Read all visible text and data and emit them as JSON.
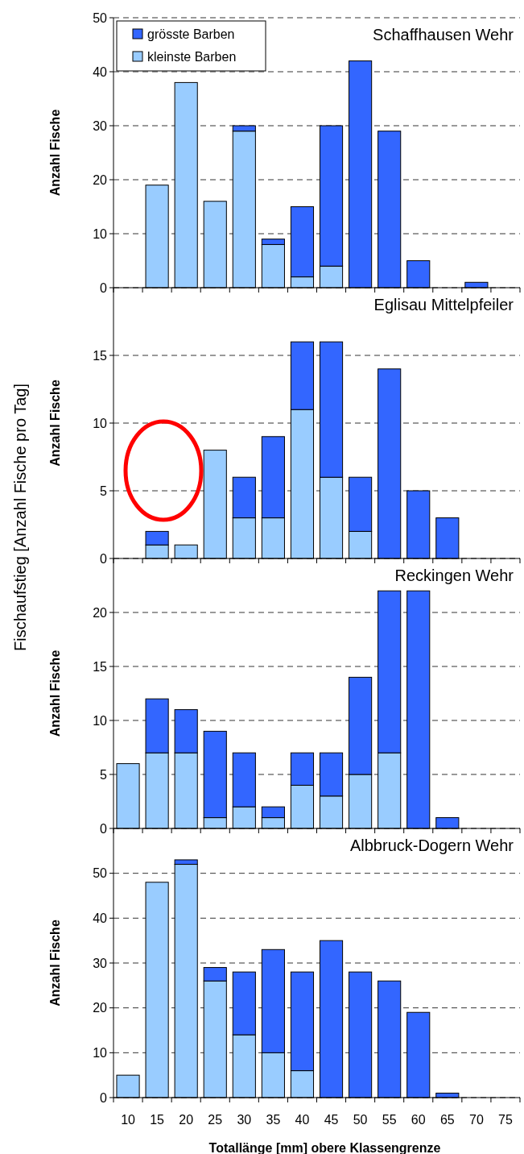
{
  "chart_data": [
    {
      "type": "bar",
      "title": "Schaffhausen Wehr",
      "ylabel": "Anzahl Fische",
      "annotations": [
        "Fischaufstieg [Anzahl Fische pro Tag]"
      ],
      "categories": [
        "10",
        "15",
        "20",
        "25",
        "30",
        "35",
        "40",
        "45",
        "50",
        "55",
        "60",
        "65",
        "70",
        "75"
      ],
      "stacked": true,
      "ylim": [
        0,
        50
      ],
      "yticks": [
        0,
        10,
        20,
        30,
        40,
        50
      ],
      "grid": "y",
      "legend": "top left",
      "tick_labels": "y",
      "series": [
        {
          "name": "kleinste Barben",
          "color": "#99ccff",
          "values": [
            null,
            19,
            38,
            16,
            29,
            8,
            2,
            4,
            null,
            null,
            null,
            null,
            null,
            null
          ]
        },
        {
          "name": "grösste Barben",
          "color": "#3366ff",
          "values": [
            null,
            null,
            null,
            null,
            1,
            1,
            13,
            26,
            42,
            29,
            5,
            null,
            1,
            null
          ]
        }
      ]
    },
    {
      "type": "bar",
      "title": "Eglisau Mittelpfeiler",
      "ylabel": "Anzahl Fische",
      "categories": [
        "10",
        "15",
        "20",
        "25",
        "30",
        "35",
        "40",
        "45",
        "50",
        "55",
        "60",
        "65",
        "70",
        "75"
      ],
      "stacked": true,
      "ylim": [
        0,
        20
      ],
      "yticks": [
        0,
        5,
        10,
        15
      ],
      "grid": "y",
      "tick_labels": "y",
      "series": [
        {
          "color": "#99ccff",
          "values": [
            null,
            1,
            1,
            8,
            3,
            3,
            11,
            6,
            2,
            null,
            null,
            null,
            null,
            null
          ]
        },
        {
          "color": "#3366ff",
          "values": [
            null,
            1,
            null,
            null,
            3,
            6,
            5,
            10,
            4,
            14,
            5,
            3,
            null,
            null
          ]
        }
      ]
    },
    {
      "type": "bar",
      "title": "Reckingen Wehr",
      "ylabel": "Anzahl Fische",
      "categories": [
        "10",
        "15",
        "20",
        "25",
        "30",
        "35",
        "40",
        "45",
        "50",
        "55",
        "60",
        "65",
        "70",
        "75"
      ],
      "stacked": true,
      "ylim": [
        0,
        25
      ],
      "yticks": [
        0,
        5,
        10,
        15,
        20
      ],
      "grid": "y",
      "tick_labels": "y",
      "series": [
        {
          "color": "#99ccff",
          "values": [
            6,
            7,
            7,
            1,
            2,
            1,
            4,
            3,
            5,
            7,
            null,
            null,
            null,
            null
          ]
        },
        {
          "color": "#3366ff",
          "values": [
            null,
            5,
            4,
            8,
            5,
            1,
            3,
            4,
            9,
            15,
            22,
            1,
            null,
            null
          ]
        }
      ]
    },
    {
      "type": "bar",
      "title": "Albbruck-Dogern Wehr",
      "ylabel": "Anzahl Fische",
      "xlabel": "Totallänge [mm] obere Klassengrenze",
      "categories": [
        "10",
        "15",
        "20",
        "25",
        "30",
        "35",
        "40",
        "45",
        "50",
        "55",
        "60",
        "65",
        "70",
        "75"
      ],
      "stacked": true,
      "ylim": [
        0,
        60
      ],
      "yticks": [
        0,
        10,
        20,
        30,
        40,
        50
      ],
      "grid": "y",
      "series": [
        {
          "color": "#99ccff",
          "values": [
            5,
            48,
            52,
            26,
            14,
            10,
            6,
            null,
            null,
            null,
            null,
            null,
            null,
            null
          ]
        },
        {
          "color": "#3366ff",
          "values": [
            null,
            null,
            1,
            3,
            14,
            23,
            22,
            35,
            28,
            26,
            19,
            1,
            null,
            null
          ]
        }
      ]
    }
  ]
}
